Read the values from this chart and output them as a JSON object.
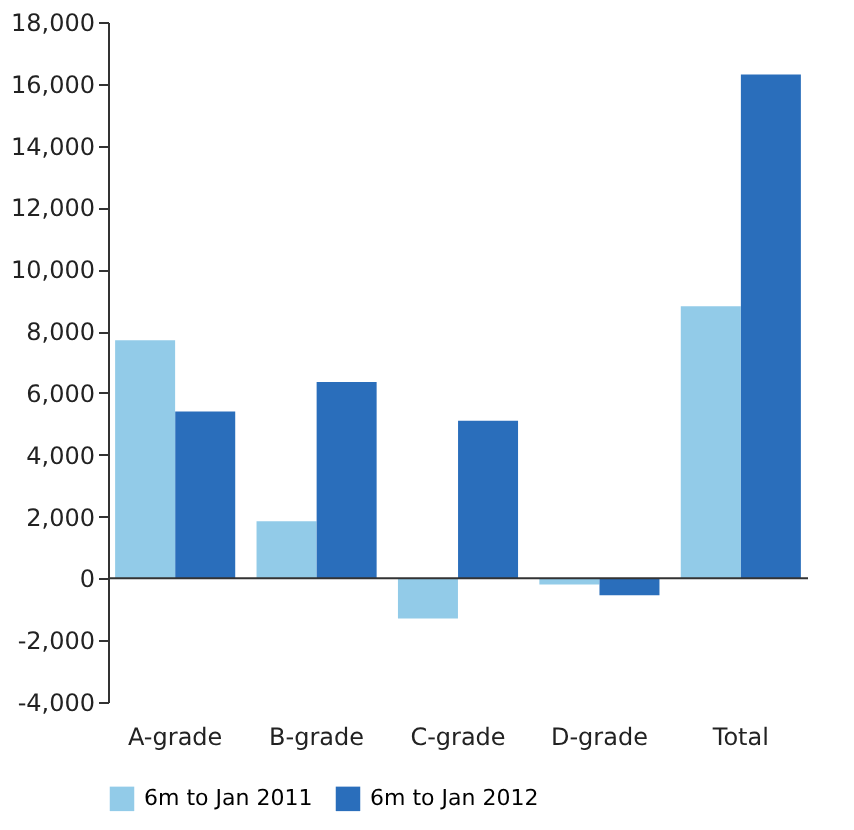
{
  "chart_data": {
    "type": "bar",
    "categories": [
      "A-grade",
      "B-grade",
      "C-grade",
      "D-grade",
      "Total"
    ],
    "series": [
      {
        "name": "6m to Jan 2011",
        "color": "#92cbe8",
        "values": [
          7700,
          1850,
          -1300,
          -200,
          8800
        ]
      },
      {
        "name": "6m to Jan 2012",
        "color": "#2a6ebb",
        "values": [
          5400,
          6350,
          5100,
          -550,
          16300
        ]
      }
    ],
    "ylim": [
      -4000,
      18000
    ],
    "yticks": [
      {
        "value": -4000,
        "label": "-4,000"
      },
      {
        "value": -2000,
        "label": "-2,000"
      },
      0,
      {
        "value": 2000,
        "label": "2,000"
      },
      {
        "value": 4000,
        "label": "4,000"
      },
      {
        "value": 6000,
        "label": "6,000"
      },
      {
        "value": 8000,
        "label": "8,000"
      },
      {
        "value": 10000,
        "label": "10,000"
      },
      {
        "value": 12000,
        "label": "12,000"
      },
      {
        "value": 14000,
        "label": "14,000"
      },
      {
        "value": 16000,
        "label": "16,000"
      },
      {
        "value": 18000,
        "label": "18,000"
      }
    ],
    "legend": "bottom"
  }
}
